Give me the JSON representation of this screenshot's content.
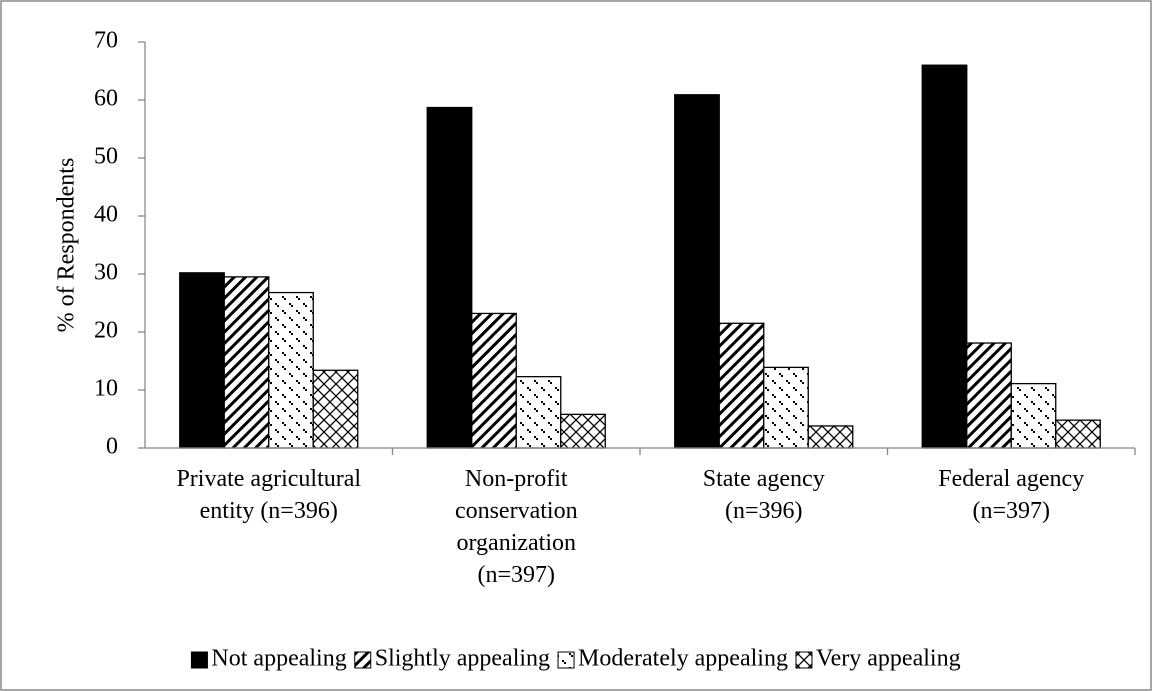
{
  "chart_data": {
    "type": "bar",
    "y_label": "% of Respondents",
    "categories": [
      "Private agricultural\nentity (n=396)",
      "Non-profit\nconservation\norganization\n(n=397)",
      "State agency\n(n=396)",
      "Federal agency\n(n=397)"
    ],
    "series": [
      {
        "name": "Not appealing",
        "color": "#000000",
        "pattern": "solid",
        "values": [
          30.2,
          58.7,
          60.9,
          66
        ]
      },
      {
        "name": "Slightly appealing",
        "color": "#000000",
        "pattern": "diagonal",
        "values": [
          29.5,
          23.2,
          21.5,
          18.1
        ]
      },
      {
        "name": "Moderately appealing",
        "color": "#000000",
        "pattern": "dots",
        "values": [
          26.8,
          12.3,
          13.9,
          11.1
        ]
      },
      {
        "name": "Very appealing",
        "color": "#000000",
        "pattern": "cross",
        "values": [
          13.4,
          5.8,
          3.8,
          4.8
        ]
      }
    ],
    "ylim": [
      0,
      70
    ],
    "yticks": [
      0,
      10,
      20,
      30,
      40,
      50,
      60,
      70
    ],
    "grid": false,
    "legend": "bottom"
  }
}
